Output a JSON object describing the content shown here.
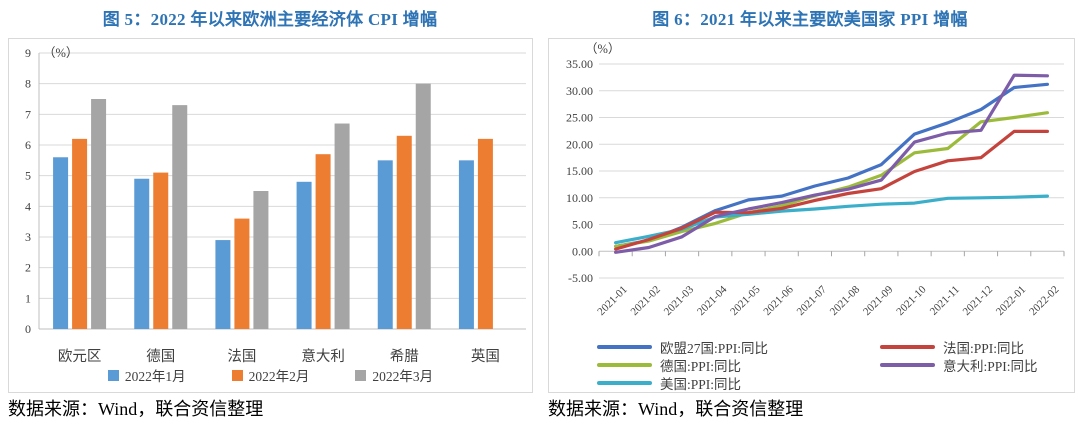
{
  "sources": [
    "数据来源：Wind，联合资信整理",
    "数据来源：Wind，联合资信整理"
  ],
  "chart_data": [
    {
      "type": "bar",
      "title": "图 5：2022 年以来欧洲主要经济体 CPI 增幅",
      "unit": "（%）",
      "categories": [
        "欧元区",
        "德国",
        "法国",
        "意大利",
        "希腊",
        "英国"
      ],
      "series": [
        {
          "name": "2022年1月",
          "color": "#5B9BD5",
          "values": [
            5.6,
            4.9,
            2.9,
            4.8,
            5.5,
            5.5
          ]
        },
        {
          "name": "2022年2月",
          "color": "#ED7D31",
          "values": [
            6.2,
            5.1,
            3.6,
            5.7,
            6.3,
            6.2
          ]
        },
        {
          "name": "2022年3月",
          "color": "#A5A5A5",
          "values": [
            7.5,
            7.3,
            4.5,
            6.7,
            8.0,
            null
          ]
        }
      ],
      "ylim": [
        0,
        9
      ],
      "ytick_step": 1,
      "grid": true,
      "legend_position": "bottom"
    },
    {
      "type": "line",
      "title": "图 6：2021 年以来主要欧美国家 PPI 增幅",
      "unit": "（%）",
      "x": [
        "2021-01",
        "2021-02",
        "2021-03",
        "2021-04",
        "2021-05",
        "2021-06",
        "2021-07",
        "2021-08",
        "2021-09",
        "2021-10",
        "2021-11",
        "2021-12",
        "2022-01",
        "2022-02"
      ],
      "series": [
        {
          "name": "欧盟27国:PPI:同比",
          "color": "#4472C4",
          "values": [
            0.9,
            2.0,
            4.5,
            7.6,
            9.6,
            10.3,
            12.2,
            13.7,
            16.2,
            21.9,
            24.0,
            26.5,
            30.6,
            31.2
          ]
        },
        {
          "name": "德国:PPI:同比",
          "color": "#9CBB3B",
          "values": [
            0.9,
            1.9,
            3.7,
            5.2,
            7.2,
            8.5,
            10.4,
            12.0,
            14.2,
            18.4,
            19.2,
            24.2,
            25.0,
            25.9
          ]
        },
        {
          "name": "美国:PPI:同比",
          "color": "#3BAFC9",
          "values": [
            1.6,
            2.8,
            4.1,
            6.4,
            6.9,
            7.5,
            7.9,
            8.4,
            8.8,
            9.0,
            9.9,
            10.0,
            10.1,
            10.3
          ]
        },
        {
          "name": "法国:PPI:同比",
          "color": "#C4443D",
          "values": [
            0.4,
            2.2,
            4.3,
            7.3,
            7.2,
            8.0,
            9.5,
            10.8,
            11.7,
            14.9,
            16.9,
            17.5,
            22.4,
            22.4
          ]
        },
        {
          "name": "意大利:PPI:同比",
          "color": "#7D5CA8",
          "values": [
            -0.2,
            0.7,
            2.7,
            6.5,
            7.9,
            9.1,
            10.5,
            11.6,
            13.3,
            20.4,
            22.1,
            22.6,
            32.9,
            32.8
          ]
        }
      ],
      "ylim": [
        -5,
        35
      ],
      "ytick_step": 5,
      "grid": true,
      "legend_position": "bottom",
      "legend_columns": [
        [
          0,
          1,
          2
        ],
        [
          3,
          4
        ]
      ]
    }
  ]
}
